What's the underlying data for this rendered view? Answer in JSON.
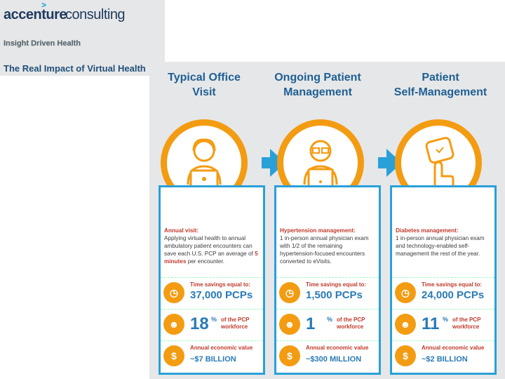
{
  "brand": {
    "logo_part1": "accenture",
    "logo_part2": "consulting",
    "logo_caret": ">",
    "tagline": "Insight Driven Health",
    "title": "The Real Impact of Virtual Health"
  },
  "colors": {
    "accent_orange": "#f39c12",
    "accent_blue": "#2aa0d8",
    "heading_blue": "#1f5f94"
  },
  "columns": [
    {
      "heading_line1": "Typical Office",
      "heading_line2": "Visit",
      "desc_title": "Annual visit:",
      "desc_body": "Applying virtual health to annual ambulatory patient encounters can save each U.S. PCP an average of",
      "desc_emph": "5 minutes",
      "desc_tail": "per encounter.",
      "time_label": "Time savings equal to:",
      "time_value": "37,000 PCPs",
      "pct_value": "18",
      "pct_sign": "%",
      "pct_label1": "of the PCP",
      "pct_label2": "workforce",
      "econ_label": "Annual economic value",
      "econ_value": "~$7 BILLION",
      "icon": "person-laptop-icon"
    },
    {
      "heading_line1": "Ongoing Patient",
      "heading_line2": "Management",
      "desc_title": "Hypertension management:",
      "desc_body": "1 in-person annual physician exam with 1/2 of the remaining hypertension-focused encounters converted to eVisits.",
      "desc_emph": "",
      "desc_tail": "",
      "time_label": "Time savings equal to:",
      "time_value": "1,500 PCPs",
      "pct_value": "1",
      "pct_sign": "%",
      "pct_label1": "of the PCP",
      "pct_label2": "workforce",
      "econ_label": "Annual economic value",
      "econ_value": "~$300 MILLION",
      "icon": "person-tablet-icon"
    },
    {
      "heading_line1": "Patient",
      "heading_line2": "Self-Management",
      "desc_title": "Diabetes management:",
      "desc_body": "1 in-person annual physician exam and technology-enabled self-management the rest of the year.",
      "desc_emph": "",
      "desc_tail": "",
      "time_label": "Time savings equal to:",
      "time_value": "24,000 PCPs",
      "pct_value": "11",
      "pct_sign": "%",
      "pct_label1": "of the PCP",
      "pct_label2": "workforce",
      "econ_label": "Annual economic value",
      "econ_value": "~$2 BILLION",
      "icon": "hand-device-icon"
    }
  ]
}
